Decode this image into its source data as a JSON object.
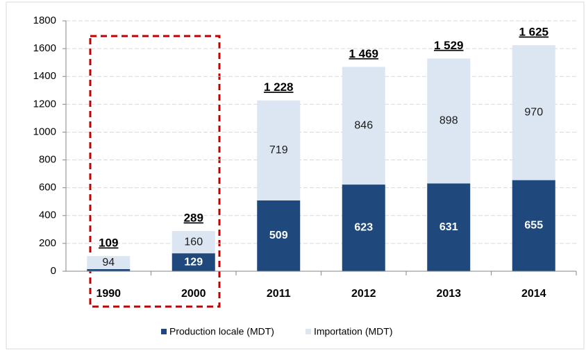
{
  "chart_data": {
    "type": "stacked_bar",
    "categories": [
      "1990",
      "2000",
      "2011",
      "2012",
      "2013",
      "2014"
    ],
    "series": [
      {
        "name": "Production locale (MDT)",
        "color": "#1f497d",
        "values": [
          15,
          129,
          509,
          623,
          631,
          655
        ],
        "value_labels": [
          null,
          "129",
          "509",
          "623",
          "631",
          "655"
        ]
      },
      {
        "name": "Importation (MDT)",
        "color": "#dce6f2",
        "values": [
          94,
          160,
          719,
          846,
          898,
          970
        ]
      }
    ],
    "totals": {
      "values": [
        109,
        289,
        1228,
        1469,
        1529,
        1625
      ],
      "value_labels": [
        "109",
        "289",
        "1 228",
        "1 469",
        "1 529",
        "1 625"
      ]
    },
    "ylim": [
      0,
      1800
    ],
    "yticks": [
      0,
      200,
      400,
      600,
      800,
      1000,
      1200,
      1400,
      1600,
      1800
    ],
    "grid": true
  }
}
